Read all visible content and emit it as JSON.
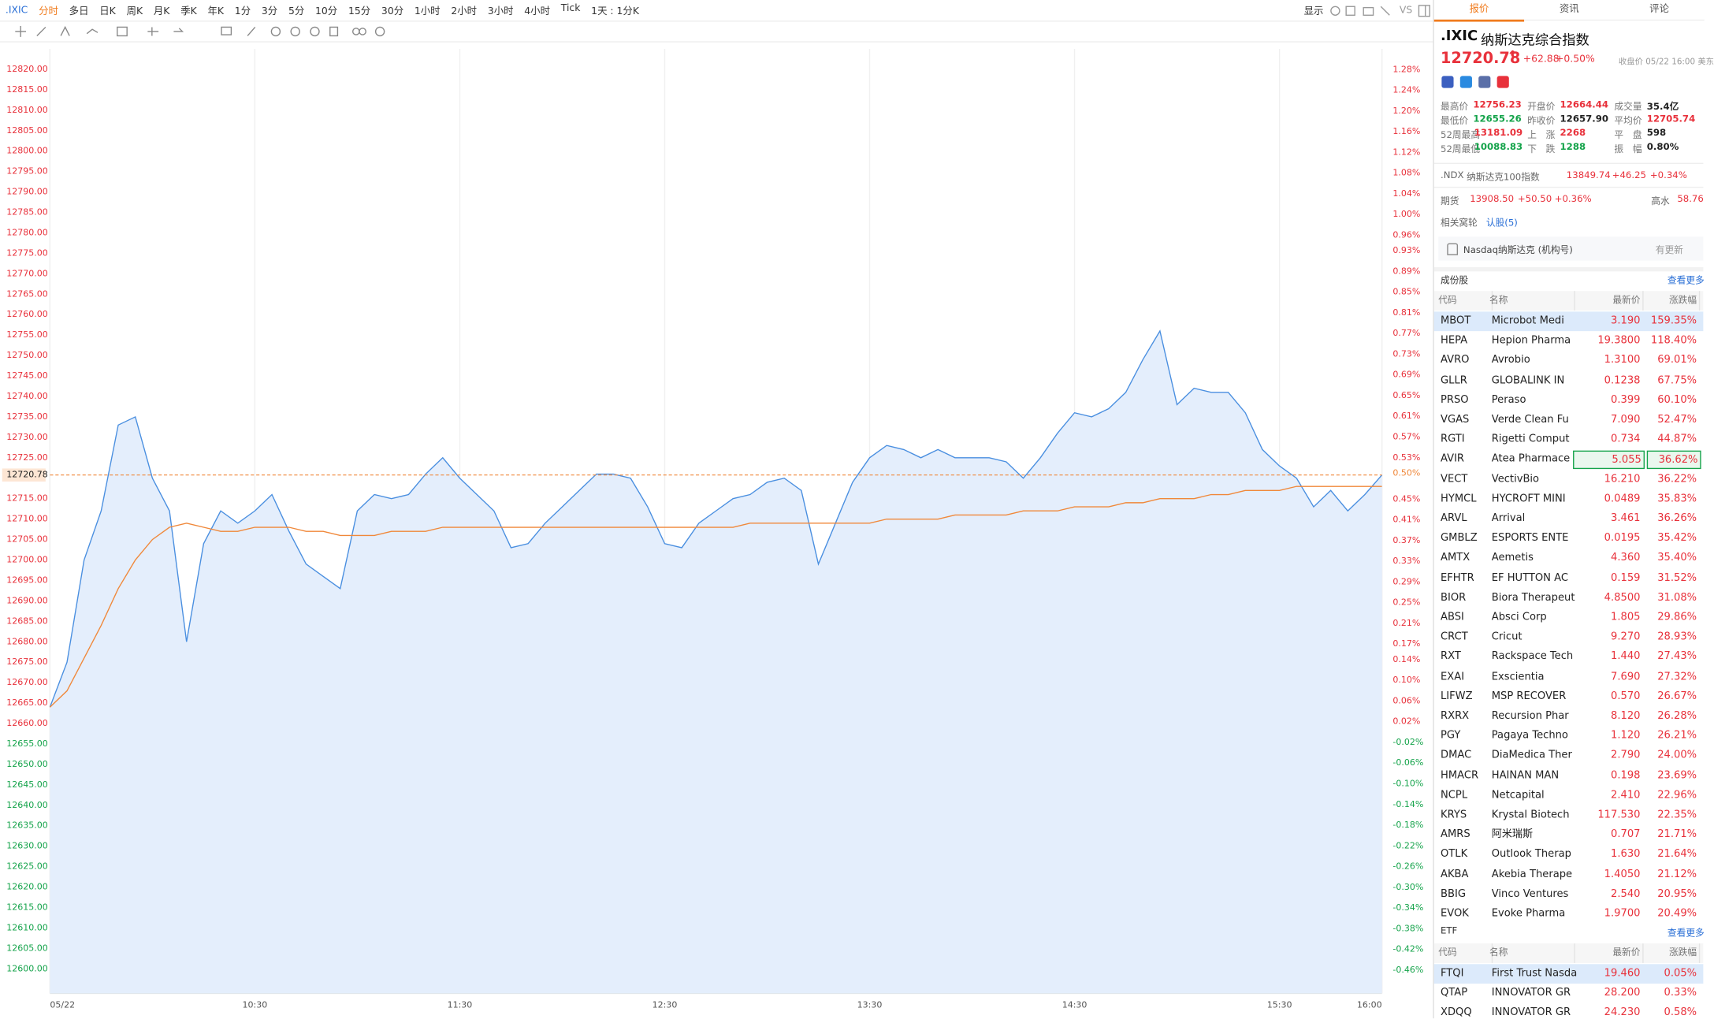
{
  "toolbar": {
    "symbol": ".IXIC",
    "periods": [
      "分时",
      "多日",
      "日K",
      "周K",
      "月K",
      "季K",
      "年K",
      "1分",
      "3分",
      "5分",
      "10分",
      "15分",
      "30分",
      "1小时",
      "2小时",
      "3小时",
      "4小时",
      "Tick"
    ],
    "active_period": 0,
    "range": "1天 : 1分K",
    "display": "显示",
    "vs": "VS"
  },
  "tabs": [
    "报价",
    "资讯",
    "评论"
  ],
  "chart_data": {
    "type": "line",
    "x": [
      "09:30",
      "09:35",
      "09:40",
      "09:45",
      "09:50",
      "09:55",
      "10:00",
      "10:05",
      "10:10",
      "10:15",
      "10:20",
      "10:25",
      "10:30",
      "10:35",
      "10:40",
      "10:45",
      "10:50",
      "10:55",
      "11:00",
      "11:05",
      "11:10",
      "11:15",
      "11:20",
      "11:25",
      "11:30",
      "11:35",
      "11:40",
      "11:45",
      "11:50",
      "11:55",
      "12:00",
      "12:05",
      "12:10",
      "12:15",
      "12:20",
      "12:25",
      "12:30",
      "12:35",
      "12:40",
      "12:45",
      "12:50",
      "12:55",
      "13:00",
      "13:05",
      "13:10",
      "13:15",
      "13:20",
      "13:25",
      "13:30",
      "13:35",
      "13:40",
      "13:45",
      "13:50",
      "13:55",
      "14:00",
      "14:05",
      "14:10",
      "14:15",
      "14:20",
      "14:25",
      "14:30",
      "14:35",
      "14:40",
      "14:45",
      "14:50",
      "14:55",
      "15:00",
      "15:05",
      "15:10",
      "15:15",
      "15:20",
      "15:25",
      "15:30",
      "15:35",
      "15:40",
      "15:45",
      "15:50",
      "15:55",
      "16:00"
    ],
    "series": [
      {
        "color": "#4a8fe0",
        "fill": "#e4eefc",
        "values": [
          12664,
          12675,
          12700,
          12712,
          12733,
          12735,
          12720,
          12712,
          12680,
          12704,
          12712,
          12709,
          12712,
          12716,
          12707,
          12699,
          12696,
          12693,
          12712,
          12716,
          12715,
          12716,
          12721,
          12725,
          12720,
          12716,
          12712,
          12703,
          12704,
          12709,
          12713,
          12717,
          12721,
          12721,
          12720,
          12713,
          12704,
          12703,
          12709,
          12712,
          12715,
          12716,
          12719,
          12720,
          12717,
          12699,
          12709,
          12719,
          12725,
          12728,
          12727,
          12725,
          12727,
          12725,
          12725,
          12725,
          12724,
          12720,
          12725,
          12731,
          12736,
          12735,
          12737,
          12741,
          12749,
          12756,
          12738,
          12742,
          12741,
          12741,
          12736,
          12727,
          12723,
          12720,
          12713,
          12717,
          12712,
          12716,
          12720.78
        ]
      },
      {
        "color": "#f0883a",
        "values": [
          12664,
          12668,
          12676,
          12684,
          12693,
          12700,
          12705,
          12708,
          12709,
          12708,
          12707,
          12707,
          12708,
          12708,
          12708,
          12707,
          12707,
          12706,
          12706,
          12706,
          12707,
          12707,
          12707,
          12708,
          12708,
          12708,
          12708,
          12708,
          12708,
          12708,
          12708,
          12708,
          12708,
          12708,
          12708,
          12708,
          12708,
          12708,
          12708,
          12708,
          12708,
          12709,
          12709,
          12709,
          12709,
          12709,
          12709,
          12709,
          12709,
          12710,
          12710,
          12710,
          12710,
          12711,
          12711,
          12711,
          12711,
          12712,
          12712,
          12712,
          12713,
          12713,
          12713,
          12714,
          12714,
          12715,
          12715,
          12715,
          12716,
          12716,
          12717,
          12717,
          12717,
          12718,
          12718,
          12718,
          12718,
          12718,
          12718
        ]
      }
    ],
    "xlim": [
      "09:30",
      "16:00"
    ],
    "xticks": [
      {
        "value": "09:30",
        "label": "05/22"
      },
      "10:30",
      "11:30",
      "12:30",
      "13:30",
      "14:30",
      "15:30",
      "16:00"
    ],
    "ylim": [
      12594,
      12825
    ],
    "yticks": [
      {
        "value": 12820,
        "label": "12820.00"
      },
      {
        "value": 12815,
        "label": "12815.00"
      },
      {
        "value": 12810,
        "label": "12810.00"
      },
      {
        "value": 12805,
        "label": "12805.00"
      },
      {
        "value": 12800,
        "label": "12800.00"
      },
      {
        "value": 12795,
        "label": "12795.00"
      },
      {
        "value": 12790,
        "label": "12790.00"
      },
      {
        "value": 12785,
        "label": "12785.00"
      },
      {
        "value": 12780,
        "label": "12780.00"
      },
      {
        "value": 12775,
        "label": "12775.00"
      },
      {
        "value": 12770,
        "label": "12770.00"
      },
      {
        "value": 12765,
        "label": "12765.00"
      },
      {
        "value": 12760,
        "label": "12760.00"
      },
      {
        "value": 12755,
        "label": "12755.00"
      },
      {
        "value": 12750,
        "label": "12750.00"
      },
      {
        "value": 12745,
        "label": "12745.00"
      },
      {
        "value": 12740,
        "label": "12740.00"
      },
      {
        "value": 12735,
        "label": "12735.00"
      },
      {
        "value": 12730,
        "label": "12730.00"
      },
      {
        "value": 12725,
        "label": "12725.00"
      },
      {
        "value": 12715,
        "label": "12715.00"
      },
      {
        "value": 12710,
        "label": "12710.00"
      },
      {
        "value": 12705,
        "label": "12705.00"
      },
      {
        "value": 12700,
        "label": "12700.00"
      },
      {
        "value": 12695,
        "label": "12695.00"
      },
      {
        "value": 12690,
        "label": "12690.00"
      },
      {
        "value": 12685,
        "label": "12685.00"
      },
      {
        "value": 12680,
        "label": "12680.00"
      },
      {
        "value": 12675,
        "label": "12675.00"
      },
      {
        "value": 12670,
        "label": "12670.00"
      },
      {
        "value": 12665,
        "label": "12665.00"
      },
      {
        "value": 12660,
        "label": "12660.00"
      },
      {
        "value": 12655,
        "label": "12655.00"
      },
      {
        "value": 12650,
        "label": "12650.00"
      },
      {
        "value": 12645,
        "label": "12645.00"
      },
      {
        "value": 12640,
        "label": "12640.00"
      },
      {
        "value": 12635,
        "label": "12635.00"
      },
      {
        "value": 12630,
        "label": "12630.00"
      },
      {
        "value": 12625,
        "label": "12625.00"
      },
      {
        "value": 12620,
        "label": "12620.00"
      },
      {
        "value": 12615,
        "label": "12615.00"
      },
      {
        "value": 12610,
        "label": "12610.00"
      },
      {
        "value": 12605,
        "label": "12605.00"
      },
      {
        "value": 12600,
        "label": "12600.00"
      }
    ],
    "y2lim": [
      -0.505,
      1.32
    ],
    "y2ticks": [
      {
        "value": 1.28,
        "label": "1.28%"
      },
      {
        "value": 1.24,
        "label": "1.24%"
      },
      {
        "value": 1.2,
        "label": "1.20%"
      },
      {
        "value": 1.16,
        "label": "1.16%"
      },
      {
        "value": 1.12,
        "label": "1.12%"
      },
      {
        "value": 1.08,
        "label": "1.08%"
      },
      {
        "value": 1.04,
        "label": "1.04%"
      },
      {
        "value": 1,
        "label": "1.00%"
      },
      {
        "value": 0.96,
        "label": "0.96%"
      },
      {
        "value": 0.93,
        "label": "0.93%"
      },
      {
        "value": 0.89,
        "label": "0.89%"
      },
      {
        "value": 0.85,
        "label": "0.85%"
      },
      {
        "value": 0.81,
        "label": "0.81%"
      },
      {
        "value": 0.77,
        "label": "0.77%"
      },
      {
        "value": 0.73,
        "label": "0.73%"
      },
      {
        "value": 0.69,
        "label": "0.69%"
      },
      {
        "value": 0.65,
        "label": "0.65%"
      },
      {
        "value": 0.61,
        "label": "0.61%"
      },
      {
        "value": 0.57,
        "label": "0.57%"
      },
      {
        "value": 0.53,
        "label": "0.53%"
      },
      {
        "value": 0.45,
        "label": "0.45%"
      },
      {
        "value": 0.41,
        "label": "0.41%"
      },
      {
        "value": 0.37,
        "label": "0.37%"
      },
      {
        "value": 0.33,
        "label": "0.33%"
      },
      {
        "value": 0.29,
        "label": "0.29%"
      },
      {
        "value": 0.25,
        "label": "0.25%"
      },
      {
        "value": 0.21,
        "label": "0.21%"
      },
      {
        "value": 0.17,
        "label": "0.17%"
      },
      {
        "value": 0.14,
        "label": "0.14%"
      },
      {
        "value": 0.1,
        "label": "0.10%"
      },
      {
        "value": 0.06,
        "label": "0.06%"
      },
      {
        "value": 0.02,
        "label": "0.02%"
      },
      {
        "value": -0.02,
        "label": "-0.02%"
      },
      {
        "value": -0.06,
        "label": "-0.06%"
      },
      {
        "value": -0.1,
        "label": "-0.10%"
      },
      {
        "value": -0.14,
        "label": "-0.14%"
      },
      {
        "value": -0.18,
        "label": "-0.18%"
      },
      {
        "value": -0.22,
        "label": "-0.22%"
      },
      {
        "value": -0.26,
        "label": "-0.26%"
      },
      {
        "value": -0.3,
        "label": "-0.30%"
      },
      {
        "value": -0.34,
        "label": "-0.34%"
      },
      {
        "value": -0.38,
        "label": "-0.38%"
      },
      {
        "value": -0.42,
        "label": "-0.42%"
      },
      {
        "value": -0.46,
        "label": "-0.46%"
      }
    ],
    "price_line": {
      "value": 12720.78,
      "pct": {
        "value": 0.5,
        "label": "0.50%"
      },
      "color": "#f0883a"
    },
    "grid": true,
    "up_color": "#e8313b",
    "down_color": "#14a34a"
  },
  "quote": {
    "symbol": ".IXIC",
    "name": "纳斯达克综合指数",
    "price": "12720.78",
    "change": "+62.88",
    "change_pct": "+0.50%",
    "status": "收盘价 05/22 16:00 美东",
    "stats": [
      [
        {
          "label": "最高价",
          "value": "12756.23",
          "color": "#e8313b"
        },
        {
          "label": "开盘价",
          "value": "12664.44",
          "color": "#e8313b"
        },
        {
          "label": "成交量",
          "value": "35.4亿",
          "color": "#222"
        }
      ],
      [
        {
          "label": "最低价",
          "value": "12655.26",
          "color": "#14a34a"
        },
        {
          "label": "昨收价",
          "value": "12657.90",
          "color": "#222"
        },
        {
          "label": "平均价",
          "value": "12705.74",
          "color": "#e8313b"
        }
      ],
      [
        {
          "label": "52周最高",
          "value": "13181.09",
          "color": "#e8313b"
        },
        {
          "label": "上　涨",
          "value": "2268",
          "color": "#e8313b"
        },
        {
          "label": "平　盘",
          "value": "598",
          "color": "#222"
        }
      ],
      [
        {
          "label": "52周最低",
          "value": "10088.83",
          "color": "#14a34a"
        },
        {
          "label": "下　跌",
          "value": "1288",
          "color": "#14a34a"
        },
        {
          "label": "振　幅",
          "value": "0.80%",
          "color": "#222"
        }
      ]
    ],
    "index": {
      "symbol": ".NDX",
      "name": "纳斯达克100指数",
      "price": "13849.74",
      "change": "+46.25",
      "change_pct": "+0.34%"
    },
    "futures": {
      "label": "期货",
      "price": "13908.50",
      "change": "+50.50",
      "change_pct": "+0.36%",
      "premium_label": "高水",
      "premium": "58.76"
    },
    "warrants": {
      "label": "相关窝轮",
      "link": "认股(5)"
    },
    "channel": {
      "name": "Nasdaq纳斯达克 (机构号)",
      "status": "有更新"
    }
  },
  "constituents": {
    "title": "成份股",
    "more": "查看更多",
    "headers": [
      "代码",
      "名称",
      "最新价",
      "涨跌幅"
    ],
    "color": "#e8313b",
    "rows": [
      [
        "MBOT",
        "Microbot Medi",
        "3.190",
        "159.35%"
      ],
      [
        "HEPA",
        "Hepion Pharma",
        "19.3800",
        "118.40%"
      ],
      [
        "AVRO",
        "Avrobio",
        "1.3100",
        "69.01%"
      ],
      [
        "GLLR",
        "GLOBALINK IN",
        "0.1238",
        "67.75%"
      ],
      [
        "PRSO",
        "Peraso",
        "0.399",
        "60.10%"
      ],
      [
        "VGAS",
        "Verde Clean Fu",
        "7.090",
        "52.47%"
      ],
      [
        "RGTI",
        "Rigetti Comput",
        "0.734",
        "44.87%"
      ],
      [
        "AVIR",
        "Atea Pharmace",
        "5.055",
        "36.62%"
      ],
      [
        "VECT",
        "VectivBio",
        "16.210",
        "36.22%"
      ],
      [
        "HYMCL",
        "HYCROFT MINI",
        "0.0489",
        "35.83%"
      ],
      [
        "ARVL",
        "Arrival",
        "3.461",
        "36.26%"
      ],
      [
        "GMBLZ",
        "ESPORTS ENTE",
        "0.0195",
        "35.42%"
      ],
      [
        "AMTX",
        "Aemetis",
        "4.360",
        "35.40%"
      ],
      [
        "EFHTR",
        "EF HUTTON AC",
        "0.159",
        "31.52%"
      ],
      [
        "BIOR",
        "Biora Therapeut",
        "4.8500",
        "31.08%"
      ],
      [
        "ABSI",
        "Absci Corp",
        "1.805",
        "29.86%"
      ],
      [
        "CRCT",
        "Cricut",
        "9.270",
        "28.93%"
      ],
      [
        "RXT",
        "Rackspace Tech",
        "1.440",
        "27.43%"
      ],
      [
        "EXAI",
        "Exscientia",
        "7.690",
        "27.32%"
      ],
      [
        "LIFWZ",
        "MSP RECOVER",
        "0.570",
        "26.67%"
      ],
      [
        "RXRX",
        "Recursion Phar",
        "8.120",
        "26.28%"
      ],
      [
        "PGY",
        "Pagaya Techno",
        "1.120",
        "26.21%"
      ],
      [
        "DMAC",
        "DiaMedica Ther",
        "2.790",
        "24.00%"
      ],
      [
        "HMACR",
        "HAINAN MAN",
        "0.198",
        "23.69%"
      ],
      [
        "NCPL",
        "Netcapital",
        "2.410",
        "22.96%"
      ],
      [
        "KRYS",
        "Krystal Biotech",
        "117.530",
        "22.35%"
      ],
      [
        "AMRS",
        "阿米瑞斯",
        "0.707",
        "21.71%"
      ],
      [
        "OTLK",
        "Outlook Therap",
        "1.630",
        "21.64%"
      ],
      [
        "AKBA",
        "Akebia Therape",
        "1.4050",
        "21.12%"
      ],
      [
        "BBIG",
        "Vinco Ventures",
        "2.540",
        "20.95%"
      ],
      [
        "EVOK",
        "Evoke Pharma",
        "1.9700",
        "20.49%"
      ]
    ]
  },
  "etf": {
    "title": "ETF",
    "more": "查看更多",
    "headers": [
      "代码",
      "名称",
      "最新价",
      "涨跌幅"
    ],
    "color": "#e8313b",
    "rows": [
      [
        "FTQI",
        "First Trust Nasda",
        "19.460",
        "0.05%"
      ],
      [
        "QTAP",
        "INNOVATOR GR",
        "28.200",
        "0.33%"
      ],
      [
        "XDQQ",
        "INNOVATOR GR",
        "24.230",
        "0.58%"
      ]
    ]
  }
}
